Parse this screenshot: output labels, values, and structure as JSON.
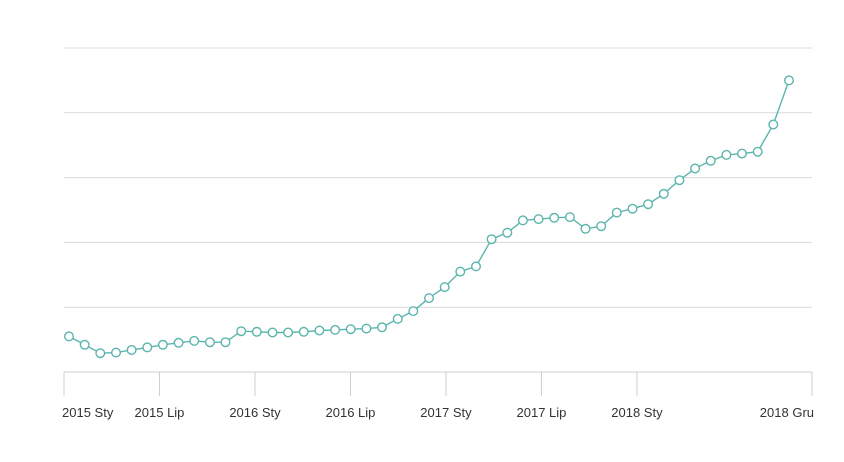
{
  "chart_data": {
    "type": "line",
    "title": "",
    "xlabel": "",
    "ylabel": "",
    "x_tick_labels": [
      "2015 Sty",
      "2015 Lip",
      "2016 Sty",
      "2016 Lip",
      "2017 Sty",
      "2017 Lip",
      "2018 Sty",
      "2018 Gru"
    ],
    "x_tick_months": [
      0,
      6,
      12,
      18,
      24,
      30,
      36,
      47
    ],
    "x_domain": [
      0,
      47
    ],
    "x_unit": "months from 2015 Sty",
    "ylim": [
      0,
      5
    ],
    "gridlines_y": [
      1,
      2,
      3,
      4,
      5
    ],
    "y_tick_labels_visible": false,
    "grid": true,
    "legend": "none",
    "series": [
      {
        "color": "#5bb5ad",
        "values": [
          0.55,
          0.42,
          0.29,
          0.3,
          0.34,
          0.38,
          0.42,
          0.45,
          0.48,
          0.46,
          0.46,
          0.63,
          0.62,
          0.61,
          0.61,
          0.62,
          0.64,
          0.65,
          0.66,
          0.67,
          0.69,
          0.82,
          0.94,
          1.14,
          1.31,
          1.55,
          1.63,
          2.05,
          2.15,
          2.34,
          2.36,
          2.38,
          2.39,
          2.21,
          2.25,
          2.46,
          2.52,
          2.59,
          2.75,
          2.96,
          3.14,
          3.26,
          3.35,
          3.37,
          3.4,
          3.82,
          4.5
        ]
      }
    ]
  }
}
